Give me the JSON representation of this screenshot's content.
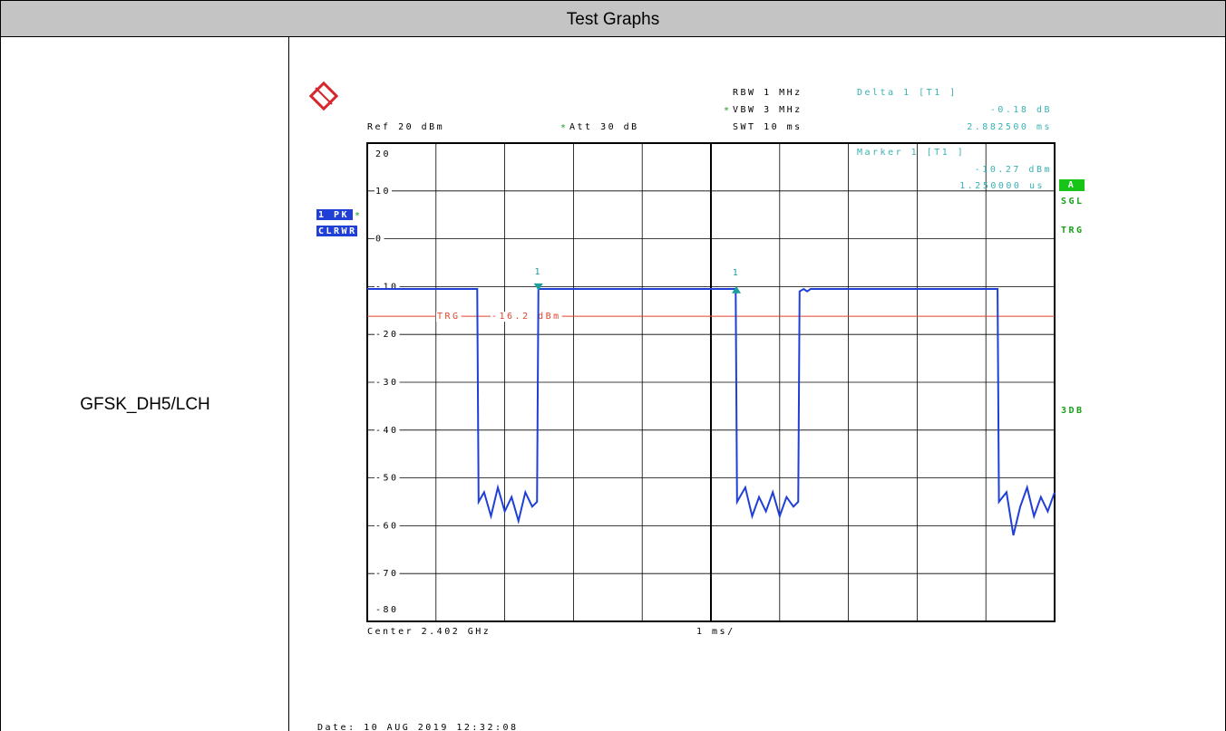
{
  "header": {
    "title": "Test Graphs"
  },
  "row": {
    "label": "GFSK_DH5/LCH"
  },
  "chart_data": {
    "type": "line",
    "xlim": [
      0,
      10
    ],
    "xticks": [
      0,
      1,
      2,
      3,
      4,
      5,
      6,
      7,
      8,
      9,
      10
    ],
    "ylim": [
      -80,
      20
    ],
    "yticks": [
      20,
      10,
      0,
      -10,
      -20,
      -30,
      -40,
      -50,
      -60,
      -70,
      -80
    ],
    "grid": true,
    "series": [
      {
        "color": "#1f3fd6",
        "x": [
          0,
          1.6,
          1.62,
          1.7,
          1.8,
          1.9,
          2.0,
          2.1,
          2.2,
          2.3,
          2.4,
          2.47,
          2.49,
          5.36,
          5.38,
          5.5,
          5.6,
          5.7,
          5.8,
          5.9,
          6.0,
          6.1,
          6.2,
          6.27,
          6.29,
          6.35,
          6.4,
          6.45,
          9.17,
          9.19,
          9.3,
          9.4,
          9.5,
          9.6,
          9.7,
          9.8,
          9.9,
          10
        ],
        "values": [
          -10.5,
          -10.5,
          -55,
          -53,
          -58,
          -52,
          -57,
          -54,
          -59,
          -53,
          -56,
          -55,
          -10.5,
          -10.5,
          -55,
          -52,
          -58,
          -54,
          -57,
          -53,
          -58,
          -54,
          -56,
          -55,
          -11,
          -10.5,
          -11,
          -10.5,
          -10.5,
          -55,
          -53,
          -62,
          -56,
          -52,
          -58,
          -54,
          -57,
          -53
        ]
      }
    ],
    "trigger": {
      "label": "TRG",
      "value": -16.2,
      "value_label": "-16.2 dBm",
      "color": "#e0452c"
    },
    "markers": [
      {
        "label": "1",
        "x": 2.49,
        "y": -10.27,
        "dir": "down"
      },
      {
        "label": "1",
        "x": 5.37,
        "y": -10.45,
        "dir": "up"
      }
    ],
    "annotations": {
      "rbw": "RBW 1 MHz",
      "vbw": "VBW 3 MHz",
      "swt": "SWT 10 ms",
      "ref": "Ref 20 dBm",
      "att": "Att 30 dB",
      "flag": "*",
      "delta": "Delta 1 [T1 ]",
      "delta_level": "-0.18 dB",
      "delta_time": "2.882500 ms",
      "marker": "Marker 1 [T1 ]",
      "marker_level": "-10.27 dBm",
      "marker_time": "1.250000 us",
      "trace": "1 PK",
      "mode": "CLRWR",
      "a": "A",
      "sgl": "SGL",
      "trg": "TRG",
      "db3": "3DB",
      "center": "Center 2.402 GHz",
      "span": "1 ms/",
      "date": "Date: 10 AUG 2019  12:32:08"
    }
  }
}
